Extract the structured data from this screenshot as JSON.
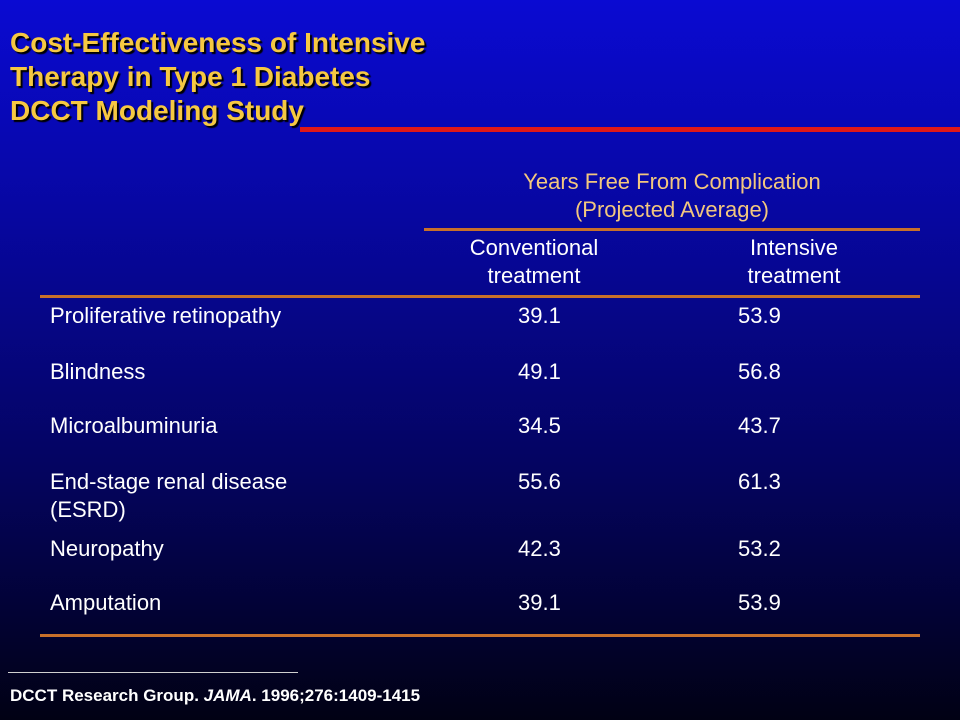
{
  "title": {
    "line1": "Cost-Effectiveness of Intensive",
    "line2": "Therapy in Type 1 Diabetes",
    "line3": "DCCT Modeling Study"
  },
  "table": {
    "group_header_line1": "Years Free From Complication",
    "group_header_line2": "(Projected Average)",
    "columns": [
      {
        "line1": "Conventional",
        "line2": "treatment"
      },
      {
        "line1": "Intensive",
        "line2": "treatment"
      }
    ],
    "rows": [
      {
        "label": "Proliferative retinopathy",
        "conventional": "39.1",
        "intensive": "53.9"
      },
      {
        "label": "Blindness",
        "conventional": "49.1",
        "intensive": "56.8"
      },
      {
        "label": "Microalbuminuria",
        "conventional": "34.5",
        "intensive": "43.7"
      },
      {
        "label": "End-stage renal disease (ESRD)",
        "conventional": "55.6",
        "intensive": "61.3"
      },
      {
        "label": "Neuropathy",
        "conventional": "42.3",
        "intensive": "53.2"
      },
      {
        "label": "Amputation",
        "conventional": "39.1",
        "intensive": "53.9"
      }
    ]
  },
  "citation": {
    "authors": "DCCT Research Group.",
    "journal": "JAMA",
    "details": ". 1996;276:1409-1415"
  },
  "colors": {
    "title": "#f6c842",
    "accent_bar": "#e01818",
    "rule": "#c8702a",
    "group_header": "#f2c77e"
  }
}
